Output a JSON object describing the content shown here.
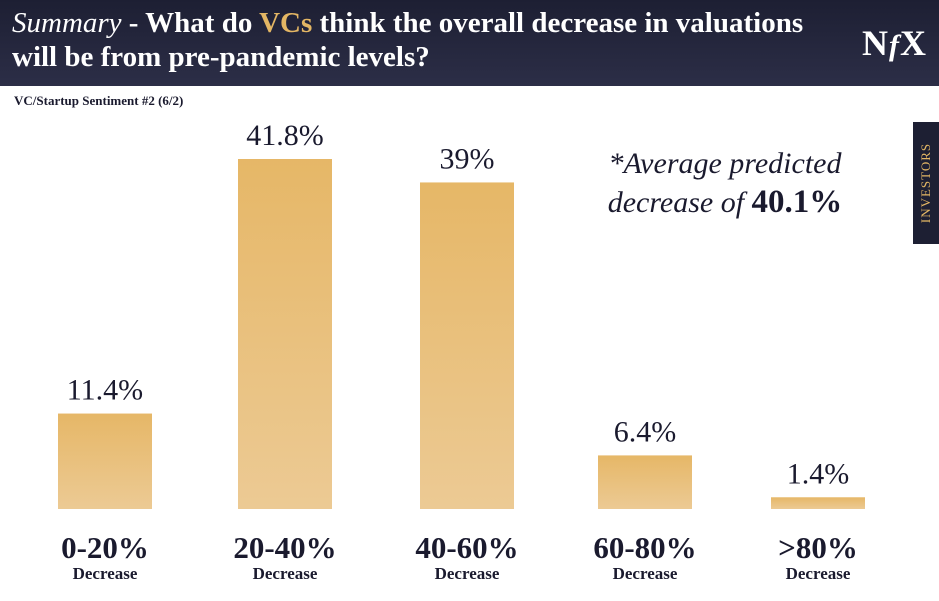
{
  "header": {
    "title_lead": "Summary",
    "title_sep": " - What do ",
    "title_highlight": "VCs",
    "title_rest": " think the overall decrease in valuations will be from pre-pandemic levels?",
    "logo_left": "N",
    "logo_mid": "f",
    "logo_right": "X"
  },
  "subtitle": "VC/Startup Sentiment #2 (6/2)",
  "side_tab": "INVESTORS",
  "annotation": {
    "line1": "*Average predicted",
    "line2_prefix": "decrease of ",
    "line2_value": "40.1%"
  },
  "colors": {
    "bar_top": "#e6b767",
    "bar_bottom": "#ecca94",
    "header": "#1d1f33",
    "accent": "#e3b664",
    "text": "#1a1a2e"
  },
  "chart_data": {
    "type": "bar",
    "categories": [
      "0-20%",
      "20-40%",
      "40-60%",
      "60-80%",
      ">80%"
    ],
    "category_sublabel": "Decrease",
    "values": [
      11.4,
      41.8,
      39,
      6.4,
      1.4
    ],
    "value_labels": [
      "11.4%",
      "41.8%",
      "39%",
      "6.4%",
      "1.4%"
    ],
    "title": "",
    "xlabel": "",
    "ylabel": "",
    "ylim": [
      0,
      45
    ],
    "grid": false,
    "legend": "none"
  }
}
